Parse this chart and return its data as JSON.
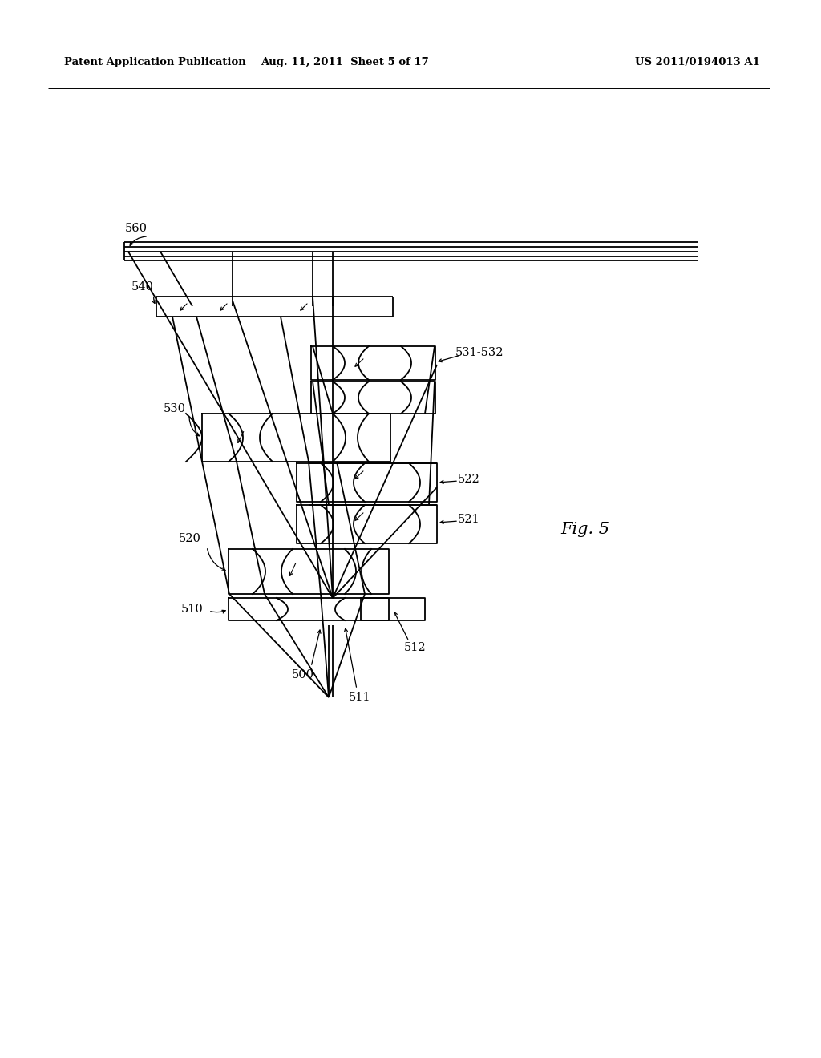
{
  "bg_color": "#ffffff",
  "line_color": "#000000",
  "header_left": "Patent Application Publication",
  "header_mid": "Aug. 11, 2011  Sheet 5 of 17",
  "header_right": "US 2011/0194013 A1",
  "fig_label": "Fig. 5",
  "page_width": 1.0,
  "page_height": 1.0
}
